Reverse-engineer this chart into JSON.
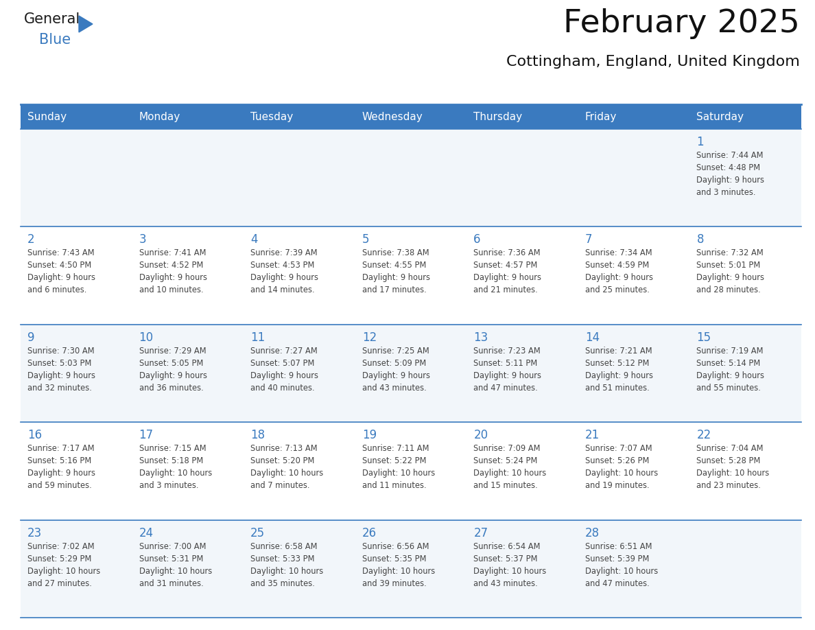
{
  "title": "February 2025",
  "subtitle": "Cottingham, England, United Kingdom",
  "days_of_week": [
    "Sunday",
    "Monday",
    "Tuesday",
    "Wednesday",
    "Thursday",
    "Friday",
    "Saturday"
  ],
  "header_bg": "#3a7abf",
  "header_text": "#ffffff",
  "cell_bg": "#ffffff",
  "cell_bg_alt": "#f2f6fa",
  "day_num_color": "#3a7abf",
  "text_color": "#444444",
  "line_color": "#3a7abf",
  "separator_color": "#c0cfe0",
  "calendar_data": [
    [
      {
        "day": null,
        "info": null
      },
      {
        "day": null,
        "info": null
      },
      {
        "day": null,
        "info": null
      },
      {
        "day": null,
        "info": null
      },
      {
        "day": null,
        "info": null
      },
      {
        "day": null,
        "info": null
      },
      {
        "day": 1,
        "info": "Sunrise: 7:44 AM\nSunset: 4:48 PM\nDaylight: 9 hours\nand 3 minutes."
      }
    ],
    [
      {
        "day": 2,
        "info": "Sunrise: 7:43 AM\nSunset: 4:50 PM\nDaylight: 9 hours\nand 6 minutes."
      },
      {
        "day": 3,
        "info": "Sunrise: 7:41 AM\nSunset: 4:52 PM\nDaylight: 9 hours\nand 10 minutes."
      },
      {
        "day": 4,
        "info": "Sunrise: 7:39 AM\nSunset: 4:53 PM\nDaylight: 9 hours\nand 14 minutes."
      },
      {
        "day": 5,
        "info": "Sunrise: 7:38 AM\nSunset: 4:55 PM\nDaylight: 9 hours\nand 17 minutes."
      },
      {
        "day": 6,
        "info": "Sunrise: 7:36 AM\nSunset: 4:57 PM\nDaylight: 9 hours\nand 21 minutes."
      },
      {
        "day": 7,
        "info": "Sunrise: 7:34 AM\nSunset: 4:59 PM\nDaylight: 9 hours\nand 25 minutes."
      },
      {
        "day": 8,
        "info": "Sunrise: 7:32 AM\nSunset: 5:01 PM\nDaylight: 9 hours\nand 28 minutes."
      }
    ],
    [
      {
        "day": 9,
        "info": "Sunrise: 7:30 AM\nSunset: 5:03 PM\nDaylight: 9 hours\nand 32 minutes."
      },
      {
        "day": 10,
        "info": "Sunrise: 7:29 AM\nSunset: 5:05 PM\nDaylight: 9 hours\nand 36 minutes."
      },
      {
        "day": 11,
        "info": "Sunrise: 7:27 AM\nSunset: 5:07 PM\nDaylight: 9 hours\nand 40 minutes."
      },
      {
        "day": 12,
        "info": "Sunrise: 7:25 AM\nSunset: 5:09 PM\nDaylight: 9 hours\nand 43 minutes."
      },
      {
        "day": 13,
        "info": "Sunrise: 7:23 AM\nSunset: 5:11 PM\nDaylight: 9 hours\nand 47 minutes."
      },
      {
        "day": 14,
        "info": "Sunrise: 7:21 AM\nSunset: 5:12 PM\nDaylight: 9 hours\nand 51 minutes."
      },
      {
        "day": 15,
        "info": "Sunrise: 7:19 AM\nSunset: 5:14 PM\nDaylight: 9 hours\nand 55 minutes."
      }
    ],
    [
      {
        "day": 16,
        "info": "Sunrise: 7:17 AM\nSunset: 5:16 PM\nDaylight: 9 hours\nand 59 minutes."
      },
      {
        "day": 17,
        "info": "Sunrise: 7:15 AM\nSunset: 5:18 PM\nDaylight: 10 hours\nand 3 minutes."
      },
      {
        "day": 18,
        "info": "Sunrise: 7:13 AM\nSunset: 5:20 PM\nDaylight: 10 hours\nand 7 minutes."
      },
      {
        "day": 19,
        "info": "Sunrise: 7:11 AM\nSunset: 5:22 PM\nDaylight: 10 hours\nand 11 minutes."
      },
      {
        "day": 20,
        "info": "Sunrise: 7:09 AM\nSunset: 5:24 PM\nDaylight: 10 hours\nand 15 minutes."
      },
      {
        "day": 21,
        "info": "Sunrise: 7:07 AM\nSunset: 5:26 PM\nDaylight: 10 hours\nand 19 minutes."
      },
      {
        "day": 22,
        "info": "Sunrise: 7:04 AM\nSunset: 5:28 PM\nDaylight: 10 hours\nand 23 minutes."
      }
    ],
    [
      {
        "day": 23,
        "info": "Sunrise: 7:02 AM\nSunset: 5:29 PM\nDaylight: 10 hours\nand 27 minutes."
      },
      {
        "day": 24,
        "info": "Sunrise: 7:00 AM\nSunset: 5:31 PM\nDaylight: 10 hours\nand 31 minutes."
      },
      {
        "day": 25,
        "info": "Sunrise: 6:58 AM\nSunset: 5:33 PM\nDaylight: 10 hours\nand 35 minutes."
      },
      {
        "day": 26,
        "info": "Sunrise: 6:56 AM\nSunset: 5:35 PM\nDaylight: 10 hours\nand 39 minutes."
      },
      {
        "day": 27,
        "info": "Sunrise: 6:54 AM\nSunset: 5:37 PM\nDaylight: 10 hours\nand 43 minutes."
      },
      {
        "day": 28,
        "info": "Sunrise: 6:51 AM\nSunset: 5:39 PM\nDaylight: 10 hours\nand 47 minutes."
      },
      {
        "day": null,
        "info": null
      }
    ]
  ]
}
